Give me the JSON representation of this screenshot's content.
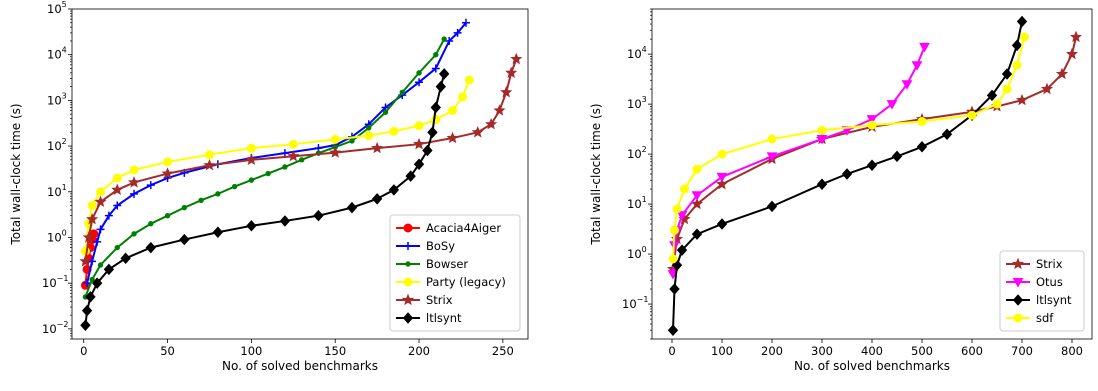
{
  "chart_data": [
    {
      "type": "line",
      "xlabel": "No. of solved benchmarks",
      "ylabel": "Total wall-clock time (s)",
      "yscale": "log",
      "xlim": [
        -7,
        265
      ],
      "ylim": [
        0.006,
        100000
      ],
      "xticks": [
        0,
        50,
        100,
        150,
        200,
        250
      ],
      "xtick_labels": [
        "0",
        "50",
        "100",
        "150",
        "200",
        "250"
      ],
      "yticks": [
        0.01,
        0.1,
        1,
        10,
        100,
        1000,
        10000,
        100000
      ],
      "ytick_labels": [
        "10",
        "10",
        "10",
        "10",
        "10",
        "10",
        "10",
        "10"
      ],
      "ytick_exponents": [
        "−2",
        "−1",
        "0",
        "1",
        "2",
        "3",
        "4",
        "5"
      ],
      "legend_position": "lower-right",
      "series": [
        {
          "name": "Acacia4Aiger",
          "color": "#ff0000",
          "marker": "circle",
          "points": [
            [
              1,
              0.09
            ],
            [
              2,
              0.2
            ],
            [
              3,
              0.35
            ],
            [
              4,
              0.6
            ],
            [
              5,
              0.9
            ],
            [
              6,
              1.2
            ]
          ]
        },
        {
          "name": "BoSy",
          "color": "#0000ff",
          "marker": "plus",
          "points": [
            [
              2,
              0.1
            ],
            [
              5,
              0.3
            ],
            [
              8,
              0.8
            ],
            [
              10,
              1.5
            ],
            [
              15,
              3
            ],
            [
              20,
              5
            ],
            [
              30,
              9
            ],
            [
              40,
              14
            ],
            [
              50,
              20
            ],
            [
              60,
              26
            ],
            [
              80,
              40
            ],
            [
              100,
              55
            ],
            [
              120,
              70
            ],
            [
              140,
              90
            ],
            [
              150,
              105
            ],
            [
              160,
              160
            ],
            [
              170,
              300
            ],
            [
              180,
              700
            ],
            [
              190,
              1300
            ],
            [
              200,
              2500
            ],
            [
              210,
              5000
            ],
            [
              218,
              20000
            ],
            [
              223,
              30000
            ],
            [
              228,
              50000
            ]
          ]
        },
        {
          "name": "Bowser",
          "color": "#008000",
          "marker": "dot",
          "points": [
            [
              1,
              0.05
            ],
            [
              5,
              0.12
            ],
            [
              10,
              0.25
            ],
            [
              20,
              0.6
            ],
            [
              30,
              1.2
            ],
            [
              40,
              2
            ],
            [
              50,
              3
            ],
            [
              60,
              4.5
            ],
            [
              70,
              6.5
            ],
            [
              80,
              9
            ],
            [
              90,
              13
            ],
            [
              100,
              18
            ],
            [
              110,
              25
            ],
            [
              120,
              35
            ],
            [
              130,
              50
            ],
            [
              140,
              70
            ],
            [
              150,
              95
            ],
            [
              160,
              130
            ],
            [
              170,
              250
            ],
            [
              180,
              550
            ],
            [
              190,
              1500
            ],
            [
              200,
              4000
            ],
            [
              210,
              10000
            ],
            [
              215,
              22000
            ]
          ]
        },
        {
          "name": "Party (legacy)",
          "color": "#ffff00",
          "marker": "circle",
          "points": [
            [
              1,
              0.5
            ],
            [
              3,
              2
            ],
            [
              5,
              5
            ],
            [
              10,
              10
            ],
            [
              20,
              20
            ],
            [
              30,
              30
            ],
            [
              50,
              45
            ],
            [
              75,
              65
            ],
            [
              100,
              90
            ],
            [
              125,
              110
            ],
            [
              150,
              140
            ],
            [
              170,
              170
            ],
            [
              185,
              210
            ],
            [
              200,
              280
            ],
            [
              210,
              380
            ],
            [
              220,
              600
            ],
            [
              226,
              1200
            ],
            [
              230,
              2800
            ]
          ]
        },
        {
          "name": "Strix",
          "color": "#a52a2a",
          "marker": "star",
          "points": [
            [
              1,
              0.3
            ],
            [
              3,
              1
            ],
            [
              5,
              2.5
            ],
            [
              10,
              6
            ],
            [
              20,
              11
            ],
            [
              30,
              16
            ],
            [
              50,
              25
            ],
            [
              75,
              38
            ],
            [
              100,
              50
            ],
            [
              125,
              60
            ],
            [
              150,
              72
            ],
            [
              175,
              90
            ],
            [
              200,
              110
            ],
            [
              220,
              150
            ],
            [
              235,
              200
            ],
            [
              243,
              300
            ],
            [
              248,
              600
            ],
            [
              252,
              1500
            ],
            [
              255,
              4000
            ],
            [
              258,
              8000
            ]
          ]
        },
        {
          "name": "ltlsynt",
          "color": "#000000",
          "marker": "diamond",
          "points": [
            [
              1,
              0.012
            ],
            [
              2,
              0.025
            ],
            [
              4,
              0.05
            ],
            [
              8,
              0.1
            ],
            [
              15,
              0.2
            ],
            [
              25,
              0.35
            ],
            [
              40,
              0.6
            ],
            [
              60,
              0.9
            ],
            [
              80,
              1.3
            ],
            [
              100,
              1.8
            ],
            [
              120,
              2.3
            ],
            [
              140,
              3
            ],
            [
              160,
              4.5
            ],
            [
              175,
              7
            ],
            [
              185,
              11
            ],
            [
              195,
              22
            ],
            [
              200,
              40
            ],
            [
              205,
              80
            ],
            [
              208,
              200
            ],
            [
              210,
              700
            ],
            [
              213,
              2000
            ],
            [
              215,
              3800
            ]
          ]
        }
      ]
    },
    {
      "type": "line",
      "xlabel": "No. of solved benchmarks",
      "ylabel": "Total wall-clock time (s)",
      "yscale": "log",
      "xlim": [
        -40,
        840
      ],
      "ylim": [
        0.02,
        80000
      ],
      "xticks": [
        0,
        100,
        200,
        300,
        400,
        500,
        600,
        700,
        800
      ],
      "xtick_labels": [
        "0",
        "100",
        "200",
        "300",
        "400",
        "500",
        "600",
        "700",
        "800"
      ],
      "yticks": [
        0.1,
        1,
        10,
        100,
        1000,
        10000
      ],
      "ytick_labels": [
        "10",
        "10",
        "10",
        "10",
        "10",
        "10"
      ],
      "ytick_exponents": [
        "−1",
        "0",
        "1",
        "2",
        "3",
        "4"
      ],
      "legend_position": "lower-right",
      "series": [
        {
          "name": "Strix",
          "color": "#a52a2a",
          "marker": "star",
          "points": [
            [
              2,
              0.5
            ],
            [
              10,
              2
            ],
            [
              25,
              5
            ],
            [
              50,
              10
            ],
            [
              100,
              25
            ],
            [
              200,
              80
            ],
            [
              300,
              200
            ],
            [
              400,
              350
            ],
            [
              500,
              500
            ],
            [
              600,
              700
            ],
            [
              650,
              900
            ],
            [
              700,
              1200
            ],
            [
              750,
              2000
            ],
            [
              780,
              4000
            ],
            [
              800,
              10000
            ],
            [
              808,
              22000
            ]
          ]
        },
        {
          "name": "Otus",
          "color": "#ff00ff",
          "marker": "triangle-down",
          "points": [
            [
              2,
              0.4
            ],
            [
              5,
              1.5
            ],
            [
              10,
              3
            ],
            [
              20,
              6
            ],
            [
              50,
              15
            ],
            [
              100,
              35
            ],
            [
              200,
              90
            ],
            [
              300,
              200
            ],
            [
              350,
              300
            ],
            [
              400,
              500
            ],
            [
              440,
              1000
            ],
            [
              470,
              2500
            ],
            [
              490,
              6000
            ],
            [
              505,
              14000
            ]
          ]
        },
        {
          "name": "ltlsynt",
          "color": "#000000",
          "marker": "diamond",
          "points": [
            [
              2,
              0.03
            ],
            [
              5,
              0.2
            ],
            [
              10,
              0.6
            ],
            [
              20,
              1.2
            ],
            [
              50,
              2.5
            ],
            [
              100,
              4
            ],
            [
              200,
              9
            ],
            [
              300,
              25
            ],
            [
              350,
              40
            ],
            [
              400,
              60
            ],
            [
              450,
              90
            ],
            [
              500,
              140
            ],
            [
              550,
              250
            ],
            [
              600,
              600
            ],
            [
              640,
              1500
            ],
            [
              670,
              4000
            ],
            [
              690,
              15000
            ],
            [
              700,
              45000
            ]
          ]
        },
        {
          "name": "sdf",
          "color": "#ffff00",
          "marker": "circle",
          "points": [
            [
              2,
              0.8
            ],
            [
              5,
              3
            ],
            [
              10,
              8
            ],
            [
              25,
              20
            ],
            [
              50,
              50
            ],
            [
              100,
              100
            ],
            [
              200,
              200
            ],
            [
              300,
              300
            ],
            [
              400,
              380
            ],
            [
              500,
              450
            ],
            [
              600,
              600
            ],
            [
              650,
              1000
            ],
            [
              670,
              2000
            ],
            [
              690,
              6000
            ],
            [
              705,
              22000
            ]
          ]
        }
      ]
    }
  ]
}
